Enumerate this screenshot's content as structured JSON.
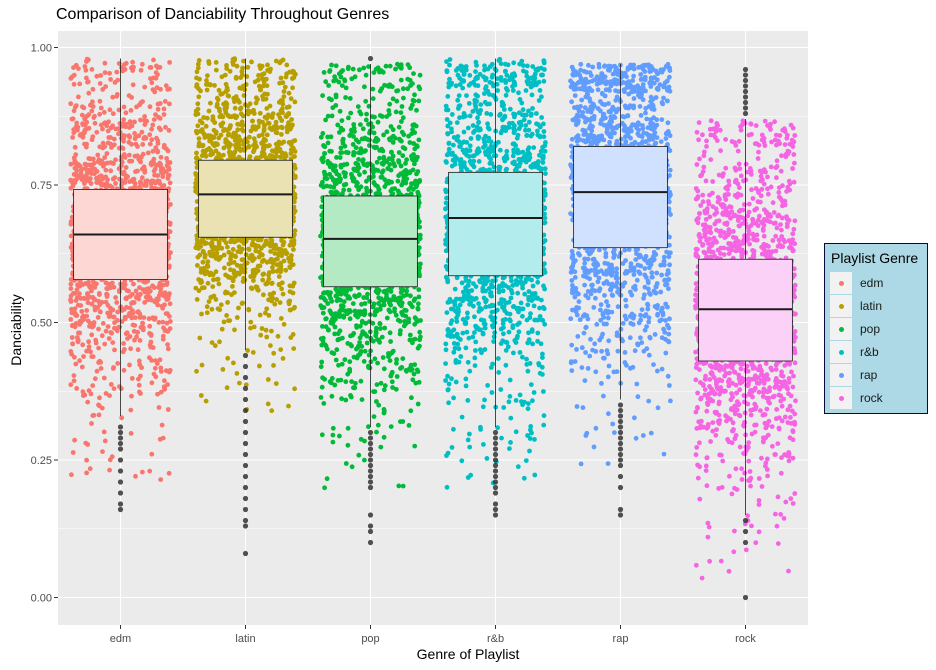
{
  "chart_data": {
    "type": "boxplot",
    "title": "Comparison of Danciability Throughout Genres",
    "xlabel": "Genre of Playlist",
    "ylabel": "Danciability",
    "ylim": [
      -0.05,
      1.03
    ],
    "yticks": [
      "0.00",
      "0.25",
      "0.50",
      "0.75",
      "1.00"
    ],
    "ytick_values": [
      0.0,
      0.25,
      0.5,
      0.75,
      1.0
    ],
    "grid": true,
    "jitter_points": true,
    "legend": {
      "title": "Playlist Genre",
      "position": "right"
    },
    "categories": [
      "edm",
      "latin",
      "pop",
      "r&b",
      "rap",
      "rock"
    ],
    "series": [
      {
        "name": "edm",
        "color": "#F8766D",
        "box_fill": "#FDD7D4",
        "q1": 0.578,
        "median": 0.66,
        "q3": 0.742,
        "whisker_low": 0.33,
        "whisker_high": 0.98,
        "outliers": [
          0.31,
          0.3,
          0.29,
          0.28,
          0.27,
          0.25,
          0.23,
          0.21,
          0.19,
          0.17,
          0.16
        ]
      },
      {
        "name": "latin",
        "color": "#B79F00",
        "box_fill": "#EAE2B3",
        "q1": 0.655,
        "median": 0.733,
        "q3": 0.795,
        "whisker_low": 0.45,
        "whisker_high": 0.98,
        "outliers": [
          0.44,
          0.42,
          0.4,
          0.38,
          0.36,
          0.34,
          0.32,
          0.3,
          0.28,
          0.26,
          0.24,
          0.22,
          0.2,
          0.18,
          0.16,
          0.14,
          0.13,
          0.08
        ]
      },
      {
        "name": "pop",
        "color": "#00BA38",
        "box_fill": "#B3EAC3",
        "q1": 0.565,
        "median": 0.652,
        "q3": 0.73,
        "whisker_low": 0.31,
        "whisker_high": 0.97,
        "outliers": [
          0.3,
          0.29,
          0.28,
          0.27,
          0.26,
          0.25,
          0.24,
          0.23,
          0.22,
          0.21,
          0.2,
          0.15,
          0.13,
          0.12,
          0.1,
          0.98
        ]
      },
      {
        "name": "r&b",
        "color": "#00BFC4",
        "box_fill": "#B3ECED",
        "q1": 0.585,
        "median": 0.69,
        "q3": 0.773,
        "whisker_low": 0.31,
        "whisker_high": 0.98,
        "outliers": [
          0.3,
          0.29,
          0.28,
          0.27,
          0.26,
          0.25,
          0.24,
          0.23,
          0.22,
          0.21,
          0.2,
          0.19,
          0.17,
          0.16,
          0.15
        ]
      },
      {
        "name": "rap",
        "color": "#619CFF",
        "box_fill": "#D0E1FF",
        "q1": 0.636,
        "median": 0.737,
        "q3": 0.82,
        "whisker_low": 0.36,
        "whisker_high": 0.97,
        "outliers": [
          0.35,
          0.34,
          0.33,
          0.32,
          0.31,
          0.3,
          0.29,
          0.28,
          0.27,
          0.26,
          0.25,
          0.24,
          0.22,
          0.2,
          0.16,
          0.15
        ]
      },
      {
        "name": "rock",
        "color": "#F564E3",
        "box_fill": "#FCD1F7",
        "q1": 0.43,
        "median": 0.524,
        "q3": 0.615,
        "whisker_low": 0.15,
        "whisker_high": 0.87,
        "outliers": [
          0.88,
          0.89,
          0.9,
          0.91,
          0.92,
          0.93,
          0.94,
          0.95,
          0.96,
          0.14,
          0.12,
          0.1,
          0.0
        ]
      }
    ]
  }
}
